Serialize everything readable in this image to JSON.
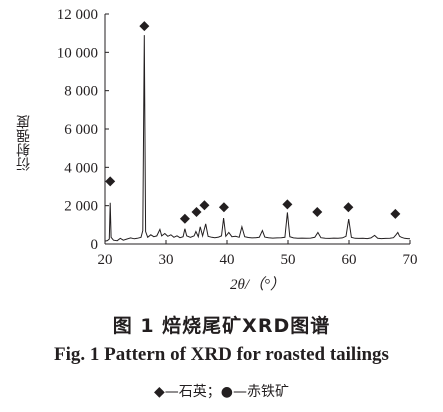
{
  "chart_data": {
    "type": "line",
    "ylabel": "衍射强度",
    "xlabel": "2θ/（°）",
    "xlim": [
      20,
      70
    ],
    "ylim": [
      0,
      12000
    ],
    "x_ticks": [
      "20",
      "30",
      "40",
      "50",
      "60",
      "70"
    ],
    "y_ticks": [
      "0",
      "2 000",
      "4 000",
      "6 000",
      "8 000",
      "10 000",
      "12 000"
    ],
    "series": [
      {
        "values": [
          [
            20,
            150
          ],
          [
            20.4,
            180
          ],
          [
            20.7,
            260
          ],
          [
            20.85,
            2150
          ],
          [
            21.0,
            350
          ],
          [
            21.4,
            200
          ],
          [
            22,
            170
          ],
          [
            22.5,
            300
          ],
          [
            23,
            200
          ],
          [
            23.6,
            260
          ],
          [
            24.2,
            320
          ],
          [
            24.8,
            270
          ],
          [
            25.3,
            300
          ],
          [
            25.9,
            350
          ],
          [
            26.2,
            700
          ],
          [
            26.45,
            10900
          ],
          [
            26.65,
            650
          ],
          [
            27.0,
            350
          ],
          [
            27.5,
            480
          ],
          [
            28.0,
            380
          ],
          [
            28.5,
            420
          ],
          [
            29.0,
            760
          ],
          [
            29.3,
            420
          ],
          [
            29.8,
            550
          ],
          [
            30.3,
            400
          ],
          [
            30.8,
            480
          ],
          [
            31.3,
            350
          ],
          [
            31.8,
            430
          ],
          [
            32.3,
            330
          ],
          [
            32.8,
            380
          ],
          [
            33.1,
            800
          ],
          [
            33.4,
            420
          ],
          [
            34.0,
            350
          ],
          [
            34.6,
            420
          ],
          [
            34.9,
            650
          ],
          [
            35.3,
            380
          ],
          [
            35.6,
            900
          ],
          [
            36.0,
            420
          ],
          [
            36.5,
            1050
          ],
          [
            36.9,
            400
          ],
          [
            37.5,
            350
          ],
          [
            38.0,
            330
          ],
          [
            38.6,
            360
          ],
          [
            39.1,
            420
          ],
          [
            39.45,
            1350
          ],
          [
            39.8,
            400
          ],
          [
            40.3,
            600
          ],
          [
            40.8,
            380
          ],
          [
            41.4,
            400
          ],
          [
            42.0,
            350
          ],
          [
            42.45,
            900
          ],
          [
            42.9,
            380
          ],
          [
            43.5,
            340
          ],
          [
            44.1,
            320
          ],
          [
            44.7,
            330
          ],
          [
            45.3,
            350
          ],
          [
            45.8,
            700
          ],
          [
            46.2,
            360
          ],
          [
            46.8,
            330
          ],
          [
            47.5,
            310
          ],
          [
            48.2,
            320
          ],
          [
            48.9,
            330
          ],
          [
            49.5,
            350
          ],
          [
            49.9,
            1650
          ],
          [
            50.3,
            380
          ],
          [
            50.9,
            320
          ],
          [
            51.6,
            300
          ],
          [
            52.3,
            310
          ],
          [
            53.0,
            300
          ],
          [
            53.7,
            310
          ],
          [
            54.4,
            350
          ],
          [
            54.9,
            600
          ],
          [
            55.4,
            330
          ],
          [
            56.1,
            300
          ],
          [
            56.8,
            290
          ],
          [
            57.5,
            310
          ],
          [
            58.2,
            300
          ],
          [
            58.9,
            320
          ],
          [
            59.5,
            400
          ],
          [
            59.95,
            1300
          ],
          [
            60.4,
            350
          ],
          [
            61.0,
            300
          ],
          [
            61.6,
            290
          ],
          [
            62.3,
            300
          ],
          [
            63.0,
            280
          ],
          [
            63.6,
            320
          ],
          [
            64.2,
            450
          ],
          [
            64.7,
            300
          ],
          [
            65.3,
            280
          ],
          [
            66.0,
            290
          ],
          [
            66.7,
            300
          ],
          [
            67.3,
            330
          ],
          [
            67.7,
            480
          ],
          [
            68.0,
            600
          ],
          [
            68.3,
            400
          ],
          [
            68.6,
            350
          ],
          [
            69.1,
            300
          ],
          [
            69.6,
            280
          ],
          [
            70,
            270
          ]
        ]
      }
    ],
    "markers": [
      {
        "symbol": "diamond",
        "x": 20.85,
        "y": 2800
      },
      {
        "symbol": "diamond",
        "x": 26.45,
        "y": 10900
      },
      {
        "symbol": "diamond",
        "x": 33.1,
        "y": 850
      },
      {
        "symbol": "diamond",
        "x": 35.0,
        "y": 1200
      },
      {
        "symbol": "diamond",
        "x": 36.3,
        "y": 1550
      },
      {
        "symbol": "diamond",
        "x": 39.5,
        "y": 1450
      },
      {
        "symbol": "diamond",
        "x": 49.9,
        "y": 1600
      },
      {
        "symbol": "diamond",
        "x": 54.8,
        "y": 1200
      },
      {
        "symbol": "diamond",
        "x": 59.9,
        "y": 1450
      },
      {
        "symbol": "diamond",
        "x": 67.6,
        "y": 1100
      }
    ]
  },
  "caption_cn": "图 1  焙烧尾矿XRD图谱",
  "caption_en": "Fig. 1   Pattern of XRD for roasted tailings",
  "legend": "◆—石英；●—赤铁矿"
}
